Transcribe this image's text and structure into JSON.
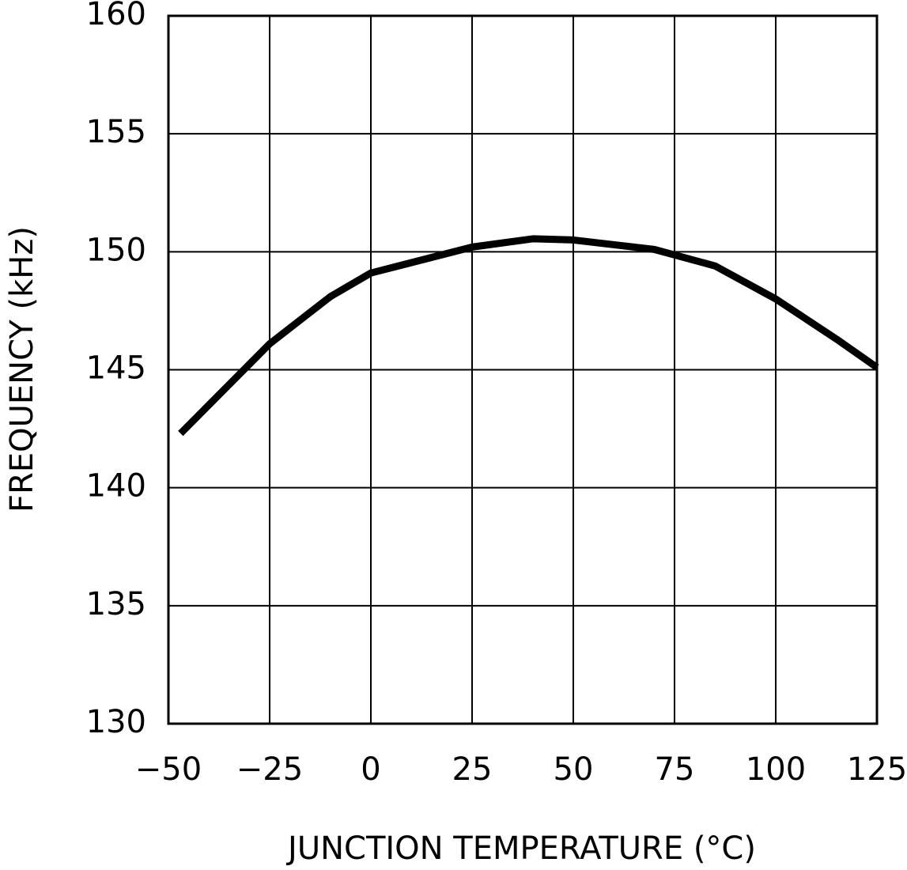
{
  "chart_data": {
    "type": "line",
    "xlabel": "JUNCTION TEMPERATURE (°C)",
    "ylabel": "FREQUENCY (kHz)",
    "x": [
      -47,
      -25,
      -10,
      0,
      25,
      40,
      50,
      70,
      85,
      100,
      115,
      125
    ],
    "series": [
      {
        "color": "#000000",
        "values": [
          142.3,
          146.1,
          148.1,
          149.1,
          150.2,
          150.55,
          150.5,
          150.1,
          149.4,
          148.0,
          146.3,
          145.1
        ]
      }
    ],
    "xlim": [
      -50,
      125
    ],
    "xticks": [
      {
        "value": -50,
        "label": "−50"
      },
      {
        "value": -25,
        "label": "−25"
      },
      0,
      25,
      50,
      75,
      100,
      125
    ],
    "ylim": [
      130,
      160
    ],
    "yticks": [
      130,
      135,
      140,
      145,
      150,
      155,
      160
    ],
    "grid": true
  }
}
